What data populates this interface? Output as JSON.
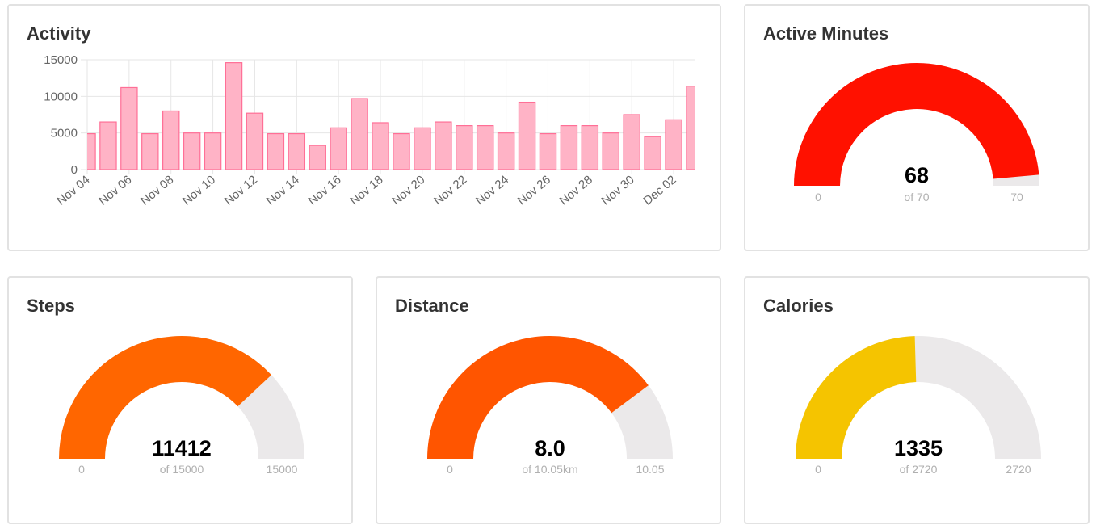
{
  "activity": {
    "title": "Activity",
    "chart_data": {
      "type": "bar",
      "x_tick_labels": [
        "Nov 04",
        "Nov 06",
        "Nov 08",
        "Nov 10",
        "Nov 12",
        "Nov 14",
        "Nov 16",
        "Nov 18",
        "Nov 20",
        "Nov 22",
        "Nov 24",
        "Nov 26",
        "Nov 28",
        "Nov 30",
        "Dec 02"
      ],
      "categories": [
        "Nov 04",
        "Nov 05",
        "Nov 06",
        "Nov 07",
        "Nov 08",
        "Nov 09",
        "Nov 10",
        "Nov 11",
        "Nov 12",
        "Nov 13",
        "Nov 14",
        "Nov 15",
        "Nov 16",
        "Nov 17",
        "Nov 18",
        "Nov 19",
        "Nov 20",
        "Nov 21",
        "Nov 22",
        "Nov 23",
        "Nov 24",
        "Nov 25",
        "Nov 26",
        "Nov 27",
        "Nov 28",
        "Nov 29",
        "Nov 30",
        "Dec 01",
        "Dec 02",
        "Dec 03"
      ],
      "values": [
        4900,
        6500,
        11200,
        4900,
        8000,
        5000,
        5000,
        14600,
        7700,
        4900,
        4900,
        3300,
        5700,
        9700,
        6400,
        4900,
        5700,
        6500,
        6000,
        6000,
        5000,
        9200,
        4900,
        6000,
        6000,
        5000,
        7500,
        4500,
        6800,
        11400
      ],
      "yticks": [
        0,
        5000,
        10000,
        15000
      ],
      "ylim": [
        0,
        15000
      ],
      "xlabel": "",
      "ylabel": "",
      "grid": true,
      "bar_fill": "#ffb3c6",
      "bar_stroke": "#ff6f96"
    }
  },
  "active_minutes": {
    "title": "Active Minutes",
    "value": 68,
    "value_label": "68",
    "max": 70,
    "sub_label": "of 70",
    "min_label": "0",
    "max_label": "70",
    "color": "#ff1100"
  },
  "steps": {
    "title": "Steps",
    "value": 11412,
    "value_label": "11412",
    "max": 15000,
    "sub_label": "of 15000",
    "min_label": "0",
    "max_label": "15000",
    "color": "#ff6600"
  },
  "distance": {
    "title": "Distance",
    "value": 8.0,
    "value_label": "8.0",
    "max": 10.05,
    "sub_label": "of 10.05km",
    "min_label": "0",
    "max_label": "10.05",
    "color": "#ff5500"
  },
  "calories": {
    "title": "Calories",
    "value": 1335,
    "value_label": "1335",
    "max": 2720,
    "sub_label": "of 2720",
    "min_label": "0",
    "max_label": "2720",
    "color": "#f5c400"
  },
  "gauge_track_color": "#ebe9ea"
}
